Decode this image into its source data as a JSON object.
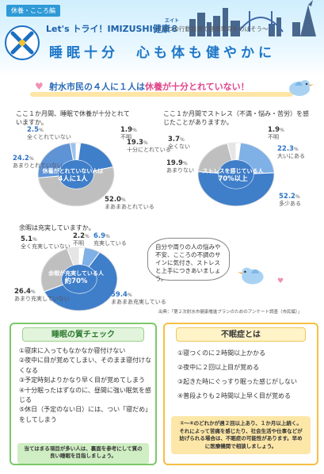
{
  "header": {
    "tag": "休養・こころ編",
    "slogan": "Let's トライ！IMIZUSHI健康８",
    "slogan_ruby": "エイト",
    "subtitle": "～８つの行動目標で健康寿命をのばそう～",
    "band_title": "睡眠十分　心も体も健やかに"
  },
  "headline": {
    "prefix": "射水市民の４人に１人は",
    "highlight": "休養が十分とれていない！"
  },
  "charts": [
    {
      "question": "ここ１か月間、睡眠で休養が十分とれていますか。",
      "center_line1": "休養がとれていない人は",
      "center_line2": "4人に1人",
      "labels": [
        {
          "pct": "1.9",
          "text": "不明"
        },
        {
          "pct": "19.3",
          "text": "十分にとれている"
        },
        {
          "pct": "52.0",
          "text": "まあまあとれている"
        },
        {
          "pct": "24.2",
          "text": "あまりとれていない"
        },
        {
          "pct": "2.5",
          "text": "全くとれていない"
        }
      ]
    },
    {
      "question": "ここ１か月間でストレス（不満・悩み・苦労）を感じたことがありますか。",
      "center_line1": "ストレスを感じている人",
      "center_line2": "70%以上",
      "labels": [
        {
          "pct": "1.9",
          "text": "不明"
        },
        {
          "pct": "22.3",
          "text": "大いにある"
        },
        {
          "pct": "52.2",
          "text": "多少ある"
        },
        {
          "pct": "19.9",
          "text": "あまりない"
        },
        {
          "pct": "3.7",
          "text": "全くない"
        }
      ]
    },
    {
      "question": "余暇は充実していますか。",
      "center_line1": "余暇が充実している人",
      "center_line2": "約70%",
      "labels": [
        {
          "pct": "2.2",
          "text": "不明"
        },
        {
          "pct": "6.9",
          "text": "充実している"
        },
        {
          "pct": "59.4",
          "text": "まあまあ充実している"
        },
        {
          "pct": "26.4",
          "text": "あまり充実していない"
        },
        {
          "pct": "5.1",
          "text": "全く充実していない"
        }
      ]
    }
  ],
  "chart_data": [
    {
      "type": "pie",
      "title": "ここ１か月間、睡眠で休養が十分とれていますか。",
      "categories": [
        "不明",
        "十分にとれている",
        "まあまあとれている",
        "あまりとれていない",
        "全くとれていない"
      ],
      "values": [
        1.9,
        19.3,
        52.0,
        24.2,
        2.5
      ],
      "colors": [
        "#ffffff",
        "#3f7ec9",
        "#bfbfbf",
        "#5e93d6",
        "#9bc2ea"
      ]
    },
    {
      "type": "pie",
      "title": "ここ１か月間でストレス（不満・悩み・苦労）を感じたことがありますか。",
      "categories": [
        "不明",
        "大いにある",
        "多少ある",
        "あまりない",
        "全くない"
      ],
      "values": [
        1.9,
        22.3,
        52.2,
        19.9,
        3.7
      ],
      "colors": [
        "#ffffff",
        "#7fb0e6",
        "#3f7ec9",
        "#bfbfbf",
        "#e5e5e5"
      ]
    },
    {
      "type": "pie",
      "title": "余暇は充実していますか。",
      "categories": [
        "不明",
        "充実している",
        "まあまあ充実している",
        "あまり充実していない",
        "全く充実していない"
      ],
      "values": [
        2.2,
        6.9,
        59.4,
        26.4,
        5.1
      ],
      "colors": [
        "#ffffff",
        "#7fb0e6",
        "#3f7ec9",
        "#bfbfbf",
        "#e5e5e5"
      ]
    }
  ],
  "bubble_text": "自分や周りの人の悩みや不安、こころの不調のサインに気付き、ストレスと上手につきあいましょう。",
  "source": "出典：「第２次射水市健康増進プランのためのアンケート調査（市民編）」",
  "sleep_check": {
    "title": "睡眠の質チェック",
    "items": [
      "①寝床に入ってもなかなか寝付けない",
      "②夜中に目が覚めてしまい、そのまま寝付けなくなる",
      "③予定時刻よりかなり早く目が覚めてしまう",
      "④十分眠ったはずなのに、昼間に強い眠気を感じる",
      "⑤休日（予定のない日）には、つい「寝だめ」をしてしまう"
    ],
    "note": "当てはまる項目が多い人は、裏面を参考にして質の良い睡眠を目指しましょう。"
  },
  "insomnia": {
    "title": "不眠症とは",
    "items": [
      "①寝つくのに２時間以上かかる",
      "②夜中に２回以上目が覚める",
      "③起きた時にぐっすり眠った感じがしない",
      "④普段よりも２時間以上早く目が覚める"
    ],
    "note": "①～④のどれかが週２回以上あり、１か月以上続く。それによって苦痛を感じたり、社会生活や仕事などが妨げられる場合は、不眠症の可能性があります。早めに医療機関で相談しましょう。"
  }
}
